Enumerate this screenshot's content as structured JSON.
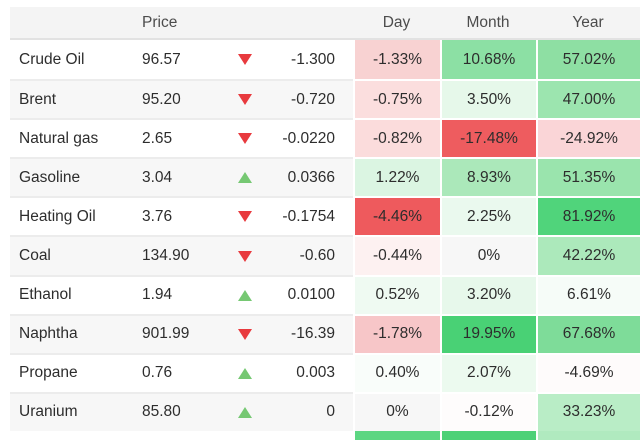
{
  "table": {
    "headers": {
      "name": "",
      "price": "Price",
      "day": "Day",
      "month": "Month",
      "year": "Year"
    },
    "rows": [
      {
        "name": "Crude Oil",
        "price": "96.57",
        "direction": "down",
        "change": "-1.300",
        "day": "-1.33%",
        "month": "10.68%",
        "year": "57.02%",
        "day_bg": "#f8d2d2",
        "month_bg": "#8ce0a4",
        "year_bg": "#8edfa3"
      },
      {
        "name": "Brent",
        "price": "95.20",
        "direction": "down",
        "change": "-0.720",
        "day": "-0.75%",
        "month": "3.50%",
        "year": "47.00%",
        "day_bg": "#fbdede",
        "month_bg": "#e6f8ea",
        "year_bg": "#9ce5af"
      },
      {
        "name": "Natural gas",
        "price": "2.65",
        "direction": "down",
        "change": "-0.0220",
        "day": "-0.82%",
        "month": "-17.48%",
        "year": "-24.92%",
        "day_bg": "#fbdcdc",
        "month_bg": "#ee5c5f",
        "year_bg": "#fad5d7"
      },
      {
        "name": "Gasoline",
        "price": "3.04",
        "direction": "up",
        "change": "0.0366",
        "day": "1.22%",
        "month": "8.93%",
        "year": "51.35%",
        "day_bg": "#dbf5e2",
        "month_bg": "#abe8ba",
        "year_bg": "#9ae4ad"
      },
      {
        "name": "Heating Oil",
        "price": "3.76",
        "direction": "down",
        "change": "-0.1754",
        "day": "-4.46%",
        "month": "2.25%",
        "year": "81.92%",
        "day_bg": "#ee5a5d",
        "month_bg": "#eaf9ee",
        "year_bg": "#50d47b"
      },
      {
        "name": "Coal",
        "price": "134.90",
        "direction": "down",
        "change": "-0.60",
        "day": "-0.44%",
        "month": "0%",
        "year": "42.22%",
        "day_bg": "#fdf1f1",
        "month_bg": null,
        "year_bg": "#ace9bb"
      },
      {
        "name": "Ethanol",
        "price": "1.94",
        "direction": "up",
        "change": "0.0100",
        "day": "0.52%",
        "month": "3.20%",
        "year": "6.61%",
        "day_bg": "#effaf2",
        "month_bg": "#e7f8eb",
        "year_bg": "#f6fcf8"
      },
      {
        "name": "Naphtha",
        "price": "901.99",
        "direction": "down",
        "change": "-16.39",
        "day": "-1.78%",
        "month": "19.95%",
        "year": "67.68%",
        "day_bg": "#f7c6c8",
        "month_bg": "#49d175",
        "year_bg": "#7edc99"
      },
      {
        "name": "Propane",
        "price": "0.76",
        "direction": "up",
        "change": "0.003",
        "day": "0.40%",
        "month": "2.07%",
        "year": "-4.69%",
        "day_bg": "#f9fdfa",
        "month_bg": "#ecfaef",
        "year_bg": "#fefbfb"
      },
      {
        "name": "Uranium",
        "price": "85.80",
        "direction": "up",
        "change": "0",
        "day": "0%",
        "month": "-0.12%",
        "year": "33.23%",
        "day_bg": null,
        "month_bg": "#fefcfc",
        "year_bg": "#b9edc6"
      }
    ],
    "partial_row": {
      "day_bg": "#5cd682",
      "month_bg": "#4dd177",
      "year_bg": "#b0eabf"
    },
    "colors": {
      "arrow_up": "#76c873",
      "arrow_down": "#e83a3e",
      "header_bg": "#f4f4f4",
      "stripe_bg": "#f7f7f7",
      "strong_red": "#ee5c5f",
      "strong_green": "#49d175",
      "text": "#2d2d2d"
    }
  }
}
